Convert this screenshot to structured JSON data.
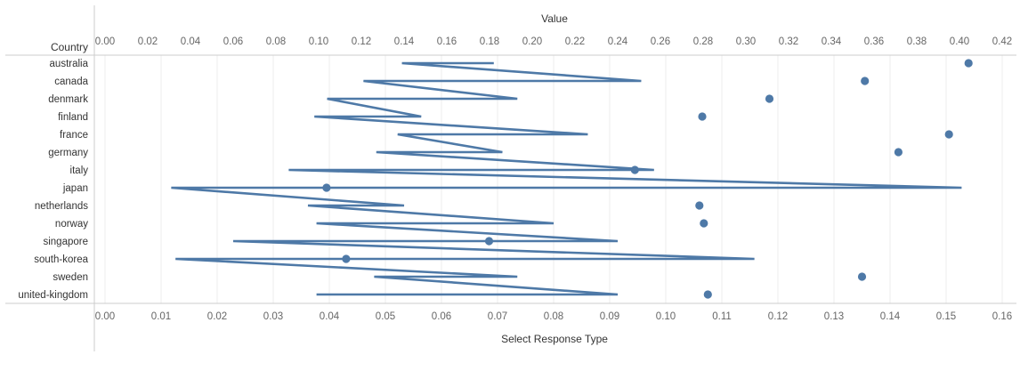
{
  "chart_data": {
    "type": "line",
    "row_header": "Country",
    "top_axis": {
      "label": "Value",
      "range": [
        0,
        0.42
      ],
      "ticks": [
        "0.00",
        "0.02",
        "0.04",
        "0.06",
        "0.08",
        "0.10",
        "0.12",
        "0.14",
        "0.16",
        "0.18",
        "0.20",
        "0.22",
        "0.24",
        "0.26",
        "0.28",
        "0.30",
        "0.32",
        "0.34",
        "0.36",
        "0.38",
        "0.40",
        "0.42"
      ]
    },
    "bottom_axis": {
      "label": "Select Response Type",
      "range": [
        0,
        0.16
      ],
      "ticks": [
        "0.00",
        "0.01",
        "0.02",
        "0.03",
        "0.04",
        "0.05",
        "0.06",
        "0.07",
        "0.08",
        "0.09",
        "0.10",
        "0.11",
        "0.12",
        "0.13",
        "0.14",
        "0.15",
        "0.16"
      ]
    },
    "categories": [
      "australia",
      "canada",
      "denmark",
      "finland",
      "france",
      "germany",
      "italy",
      "japan",
      "netherlands",
      "norway",
      "singapore",
      "south-korea",
      "sweden",
      "united-kingdom"
    ],
    "line_path": [
      {
        "row": "australia",
        "x": 0.182
      },
      {
        "row": "australia",
        "x": 0.139
      },
      {
        "row": "canada",
        "x": 0.251
      },
      {
        "row": "canada",
        "x": 0.121
      },
      {
        "row": "denmark",
        "x": 0.193
      },
      {
        "row": "denmark",
        "x": 0.104
      },
      {
        "row": "finland",
        "x": 0.148
      },
      {
        "row": "finland",
        "x": 0.098
      },
      {
        "row": "france",
        "x": 0.226
      },
      {
        "row": "france",
        "x": 0.137
      },
      {
        "row": "germany",
        "x": 0.186
      },
      {
        "row": "germany",
        "x": 0.127
      },
      {
        "row": "italy",
        "x": 0.257
      },
      {
        "row": "italy",
        "x": 0.086
      },
      {
        "row": "japan",
        "x": 0.401
      },
      {
        "row": "japan",
        "x": 0.031
      },
      {
        "row": "netherlands",
        "x": 0.14
      },
      {
        "row": "netherlands",
        "x": 0.095
      },
      {
        "row": "norway",
        "x": 0.21
      },
      {
        "row": "norway",
        "x": 0.099
      },
      {
        "row": "singapore",
        "x": 0.24
      },
      {
        "row": "singapore",
        "x": 0.06
      },
      {
        "row": "south-korea",
        "x": 0.304
      },
      {
        "row": "south-korea",
        "x": 0.033
      },
      {
        "row": "sweden",
        "x": 0.193
      },
      {
        "row": "sweden",
        "x": 0.126
      },
      {
        "row": "united-kingdom",
        "x": 0.24
      },
      {
        "row": "united-kingdom",
        "x": 0.099
      }
    ],
    "points": [
      {
        "row": "australia",
        "value": 0.154
      },
      {
        "row": "canada",
        "value": 0.1355
      },
      {
        "row": "denmark",
        "value": 0.1185
      },
      {
        "row": "finland",
        "value": 0.1065
      },
      {
        "row": "france",
        "value": 0.1505
      },
      {
        "row": "germany",
        "value": 0.1415
      },
      {
        "row": "italy",
        "value": 0.0945
      },
      {
        "row": "japan",
        "value": 0.0395
      },
      {
        "row": "netherlands",
        "value": 0.106
      },
      {
        "row": "norway",
        "value": 0.1068
      },
      {
        "row": "singapore",
        "value": 0.0685
      },
      {
        "row": "south-korea",
        "value": 0.043
      },
      {
        "row": "sweden",
        "value": 0.135
      },
      {
        "row": "united-kingdom",
        "value": 0.1075
      }
    ],
    "colors": {
      "series": "#4e79a7",
      "grid": "#ececec",
      "axis_text": "#666666",
      "label_text": "#333333",
      "divider": "#cccccc"
    },
    "grid": true
  }
}
